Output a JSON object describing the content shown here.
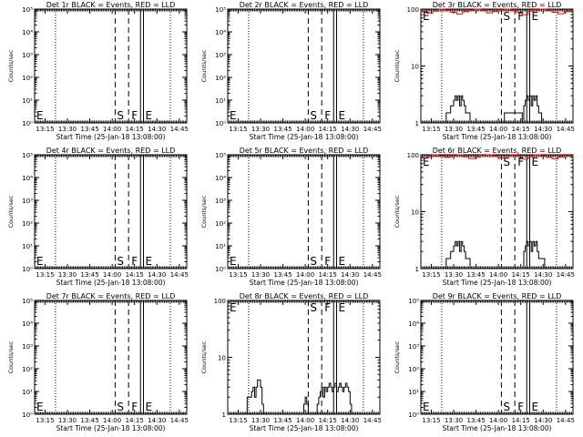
{
  "xtick_labels": [
    "13:15",
    "13:30",
    "13:45",
    "14:00",
    "14:15",
    "14:30",
    "14:45"
  ],
  "xlabel": "Start Time (25-Jan-18 13:08:00)",
  "ylabel": "Counts/sec",
  "markers": {
    "e": "E",
    "s": "S",
    "f": "F"
  },
  "colors": {
    "events": "#000000",
    "lld": "#ff0000",
    "background": "#ffffff"
  },
  "chart_data": [
    {
      "type": "line",
      "title": "Det 1r BLACK = Events, RED = LLD",
      "xlim": [
        "13:08",
        "14:50"
      ],
      "yscale": "log",
      "ylim": [
        1,
        100000
      ],
      "ytick_labels": [
        "10⁰",
        "10¹",
        "10²",
        "10³",
        "10⁴",
        "10⁵"
      ],
      "vlines": {
        "dotted": [
          "13:22",
          "14:39"
        ],
        "dashed": [
          "14:02",
          "14:11"
        ],
        "solid": [
          "14:19",
          "14:21"
        ]
      },
      "series": []
    },
    {
      "type": "line",
      "title": "Det 2r BLACK = Events, RED = LLD",
      "xlim": [
        "13:08",
        "14:50"
      ],
      "yscale": "log",
      "ylim": [
        1,
        100000
      ],
      "ytick_labels": [
        "10⁰",
        "10¹",
        "10²",
        "10³",
        "10⁴",
        "10⁵"
      ],
      "vlines": {
        "dotted": [
          "13:22",
          "14:39"
        ],
        "dashed": [
          "14:02",
          "14:11"
        ],
        "solid": [
          "14:19",
          "14:21"
        ]
      },
      "series": []
    },
    {
      "type": "line",
      "title": "Det 3r BLACK = Events, RED = LLD",
      "xlim": [
        "13:08",
        "14:50"
      ],
      "yscale": "log",
      "ylim": [
        1,
        100
      ],
      "ytick_labels": [
        "1",
        "10",
        "100"
      ],
      "vlines": {
        "dotted": [
          "13:22",
          "14:39"
        ],
        "dashed": [
          "14:02",
          "14:11"
        ],
        "solid": [
          "14:19",
          "14:21"
        ]
      },
      "series": [
        {
          "color": "black",
          "x": [
            "13:08",
            "13:22",
            "13:25",
            "13:28",
            "13:29",
            "13:30",
            "13:31",
            "13:32",
            "13:33",
            "13:34",
            "13:35",
            "13:36",
            "13:37",
            "13:38",
            "13:39",
            "13:41",
            "13:42",
            "14:03",
            "14:04",
            "14:16",
            "14:17",
            "14:18",
            "14:19",
            "14:20",
            "14:21",
            "14:22",
            "14:23",
            "14:24",
            "14:25",
            "14:26",
            "14:27",
            "14:28",
            "14:29",
            "14:50"
          ],
          "y": [
            1,
            1,
            1.5,
            2,
            2,
            2.5,
            3,
            2.5,
            3,
            2,
            3,
            2.5,
            2,
            1.5,
            1.5,
            1,
            1,
            1,
            1.5,
            1,
            2,
            2.5,
            3,
            2.5,
            3,
            2,
            3,
            2.5,
            3,
            2,
            1.5,
            1.5,
            1,
            1
          ]
        },
        {
          "color": "red",
          "x": [
            "13:08",
            "13:12",
            "13:16",
            "13:20",
            "13:24",
            "13:28",
            "13:32",
            "13:36",
            "13:40",
            "13:44",
            "13:48",
            "13:52",
            "13:56",
            "14:00",
            "14:04",
            "14:08",
            "14:12",
            "14:16",
            "14:20",
            "14:24",
            "14:28",
            "14:32",
            "14:36",
            "14:40",
            "14:44",
            "14:48",
            "14:50"
          ],
          "y": [
            90,
            85,
            92,
            100,
            95,
            88,
            82,
            90,
            96,
            100,
            94,
            86,
            91,
            97,
            100,
            93,
            87,
            80,
            92,
            97,
            100,
            95,
            88,
            83,
            90,
            96,
            92
          ]
        }
      ]
    },
    {
      "type": "line",
      "title": "Det 4r BLACK = Events, RED = LLD",
      "xlim": [
        "13:08",
        "14:50"
      ],
      "yscale": "log",
      "ylim": [
        1,
        100000
      ],
      "ytick_labels": [
        "10⁰",
        "10¹",
        "10²",
        "10³",
        "10⁴",
        "10⁵"
      ],
      "vlines": {
        "dotted": [
          "13:22",
          "14:39"
        ],
        "dashed": [
          "14:02",
          "14:11"
        ],
        "solid": [
          "14:19",
          "14:21"
        ]
      },
      "series": []
    },
    {
      "type": "line",
      "title": "Det 5r BLACK = Events, RED = LLD",
      "xlim": [
        "13:08",
        "14:50"
      ],
      "yscale": "log",
      "ylim": [
        1,
        100000
      ],
      "ytick_labels": [
        "10⁰",
        "10¹",
        "10²",
        "10³",
        "10⁴",
        "10⁵"
      ],
      "vlines": {
        "dotted": [
          "13:22",
          "14:39"
        ],
        "dashed": [
          "14:02",
          "14:11"
        ],
        "solid": [
          "14:19",
          "14:21"
        ]
      },
      "series": []
    },
    {
      "type": "line",
      "title": "Det 6r BLACK = Events, RED = LLD",
      "xlim": [
        "13:08",
        "14:50"
      ],
      "yscale": "log",
      "ylim": [
        1,
        100
      ],
      "ytick_labels": [
        "1",
        "10",
        "100"
      ],
      "vlines": {
        "dotted": [
          "13:22",
          "14:39"
        ],
        "dashed": [
          "14:02",
          "14:11"
        ],
        "solid": [
          "14:19",
          "14:21"
        ]
      },
      "series": [
        {
          "color": "black",
          "x": [
            "13:08",
            "13:22",
            "13:25",
            "13:28",
            "13:29",
            "13:30",
            "13:31",
            "13:32",
            "13:33",
            "13:34",
            "13:35",
            "13:36",
            "13:37",
            "13:38",
            "13:39",
            "13:41",
            "13:42",
            "14:16",
            "14:17",
            "14:18",
            "14:19",
            "14:20",
            "14:21",
            "14:22",
            "14:23",
            "14:24",
            "14:25",
            "14:26",
            "14:27",
            "14:28",
            "14:30",
            "14:31",
            "14:50"
          ],
          "y": [
            1,
            1,
            1.5,
            2,
            2,
            2.5,
            3,
            2.5,
            3,
            2,
            3,
            2.5,
            2,
            1.5,
            1.5,
            1,
            1,
            1,
            2,
            2.5,
            3,
            2.5,
            3,
            2,
            3,
            2.5,
            3,
            2,
            1.5,
            1.5,
            1.5,
            1,
            1
          ]
        },
        {
          "color": "red",
          "x": [
            "13:08",
            "13:12",
            "13:16",
            "13:20",
            "13:24",
            "13:28",
            "13:32",
            "13:36",
            "13:40",
            "13:44",
            "13:48",
            "13:52",
            "13:56",
            "14:00",
            "14:04",
            "14:08",
            "14:12",
            "14:16",
            "14:20",
            "14:24",
            "14:28",
            "14:32",
            "14:36",
            "14:40",
            "14:44",
            "14:48",
            "14:50"
          ],
          "y": [
            88,
            92,
            100,
            95,
            90,
            97,
            100,
            92,
            86,
            91,
            98,
            100,
            94,
            88,
            93,
            99,
            95,
            84,
            92,
            100,
            96,
            90,
            85,
            91,
            97,
            93,
            90
          ]
        }
      ]
    },
    {
      "type": "line",
      "title": "Det 7r BLACK = Events, RED = LLD",
      "xlim": [
        "13:08",
        "14:50"
      ],
      "yscale": "log",
      "ylim": [
        1,
        100000
      ],
      "ytick_labels": [
        "10⁰",
        "10¹",
        "10²",
        "10³",
        "10⁴",
        "10⁵"
      ],
      "vlines": {
        "dotted": [
          "13:22",
          "14:39"
        ],
        "dashed": [
          "14:02",
          "14:11"
        ],
        "solid": [
          "14:19",
          "14:21"
        ]
      },
      "series": []
    },
    {
      "type": "line",
      "title": "Det 8r BLACK = Events, RED = LLD",
      "xlim": [
        "13:08",
        "14:50"
      ],
      "yscale": "log",
      "ylim": [
        1,
        100
      ],
      "ytick_labels": [
        "1",
        "10",
        "100"
      ],
      "vlines": {
        "dotted": [
          "13:22",
          "14:39"
        ],
        "dashed": [
          "14:02",
          "14:11"
        ],
        "solid": [
          "14:19",
          "14:21"
        ]
      },
      "series": [
        {
          "color": "black",
          "x": [
            "13:08",
            "13:20",
            "13:21",
            "13:23",
            "13:24",
            "13:25",
            "13:26",
            "13:27",
            "13:28",
            "13:30",
            "13:31",
            "13:32",
            "13:58",
            "13:59",
            "14:00",
            "14:01",
            "14:02",
            "14:03",
            "14:07",
            "14:08",
            "14:09",
            "14:10",
            "14:11",
            "14:12",
            "14:13",
            "14:14",
            "14:15",
            "14:16",
            "14:17",
            "14:18",
            "14:19",
            "14:20",
            "14:21",
            "14:22",
            "14:23",
            "14:24",
            "14:25",
            "14:26",
            "14:27",
            "14:28",
            "14:29",
            "14:30",
            "14:31",
            "14:50"
          ],
          "y": [
            1,
            1,
            2,
            2,
            2.5,
            3,
            2,
            3,
            4,
            3,
            1.5,
            1,
            1,
            1.5,
            2,
            1.5,
            1,
            1,
            1,
            1.5,
            2,
            2.5,
            3,
            2,
            3,
            2.5,
            3,
            3.5,
            3,
            2.5,
            3,
            3.5,
            2.5,
            3,
            3.5,
            3,
            2.5,
            3,
            3.5,
            3,
            2.5,
            1.5,
            1,
            1
          ]
        }
      ]
    },
    {
      "type": "line",
      "title": "Det 9r BLACK = Events, RED = LLD",
      "xlim": [
        "13:08",
        "14:50"
      ],
      "yscale": "log",
      "ylim": [
        1,
        100000
      ],
      "ytick_labels": [
        "10⁰",
        "10¹",
        "10²",
        "10³",
        "10⁴",
        "10⁵"
      ],
      "vlines": {
        "dotted": [
          "13:22",
          "14:39"
        ],
        "dashed": [
          "14:02",
          "14:11"
        ],
        "solid": [
          "14:19",
          "14:21"
        ]
      },
      "series": []
    }
  ]
}
